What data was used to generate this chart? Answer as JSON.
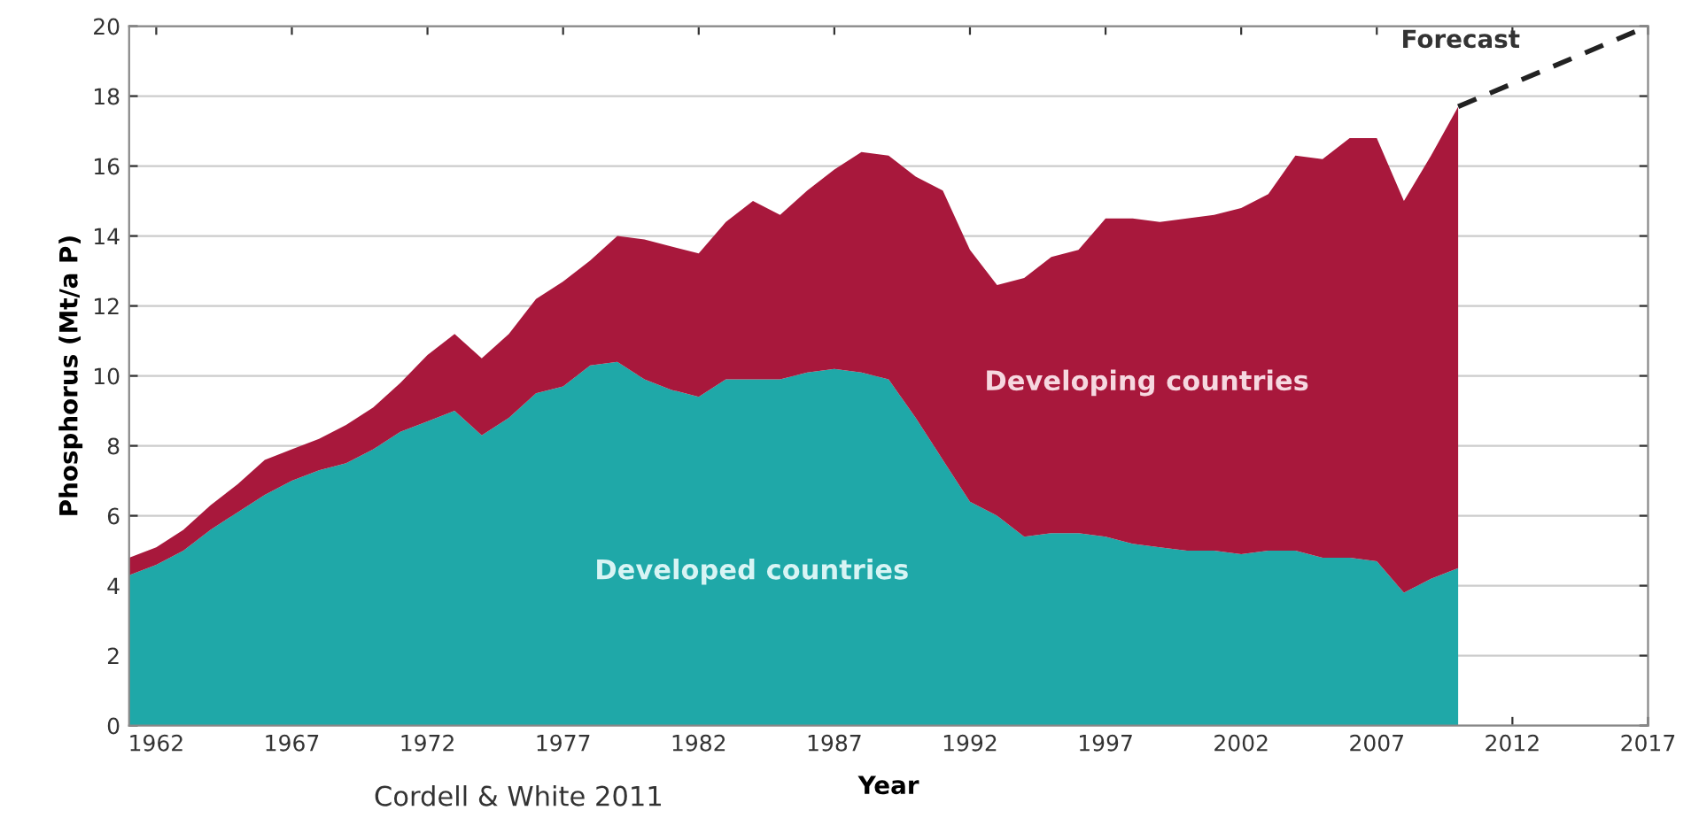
{
  "chart_data": {
    "type": "area",
    "stacked": true,
    "xlabel": "Year",
    "ylabel": "Phosphorus (Mt/a P)",
    "x": [
      1961,
      1962,
      1963,
      1964,
      1965,
      1966,
      1967,
      1968,
      1969,
      1970,
      1971,
      1972,
      1973,
      1974,
      1975,
      1976,
      1977,
      1978,
      1979,
      1980,
      1981,
      1982,
      1983,
      1984,
      1985,
      1986,
      1987,
      1988,
      1989,
      1990,
      1991,
      1992,
      1993,
      1994,
      1995,
      1996,
      1997,
      1998,
      1999,
      2000,
      2001,
      2002,
      2003,
      2004,
      2005,
      2006,
      2007,
      2008,
      2009,
      2010
    ],
    "series": [
      {
        "name": "Developed countries",
        "color": "#1fa8a8",
        "values": [
          4.3,
          4.6,
          5.0,
          5.6,
          6.1,
          6.6,
          7.0,
          7.3,
          7.5,
          7.9,
          8.4,
          8.7,
          9.0,
          8.3,
          8.8,
          9.5,
          9.7,
          10.3,
          10.4,
          9.9,
          9.6,
          9.4,
          9.9,
          9.9,
          9.9,
          10.1,
          10.2,
          10.1,
          9.9,
          8.8,
          7.6,
          6.4,
          6.0,
          5.4,
          5.5,
          5.5,
          5.4,
          5.2,
          5.1,
          5.0,
          5.0,
          4.9,
          5.0,
          5.0,
          4.8,
          4.8,
          4.7,
          3.8,
          4.2,
          4.5
        ]
      },
      {
        "name": "Developing countries",
        "color": "#a8183c",
        "values": [
          0.5,
          0.5,
          0.6,
          0.7,
          0.8,
          1.0,
          0.9,
          0.9,
          1.1,
          1.2,
          1.4,
          1.9,
          2.2,
          2.2,
          2.4,
          2.7,
          3.0,
          3.0,
          3.6,
          4.0,
          4.1,
          4.1,
          4.5,
          5.1,
          4.7,
          5.2,
          5.7,
          6.3,
          6.4,
          6.9,
          7.7,
          7.2,
          6.6,
          7.4,
          7.9,
          8.1,
          9.1,
          9.3,
          9.3,
          9.5,
          9.6,
          9.9,
          10.2,
          11.3,
          11.4,
          12.0,
          12.1,
          11.2,
          12.1,
          13.2
        ]
      },
      {
        "name": "Forecast",
        "type": "line",
        "line_style": "dashed",
        "color": "#222222",
        "x": [
          2010,
          2017
        ],
        "values": [
          17.7,
          20.0
        ]
      }
    ],
    "xlim": [
      1961,
      2017
    ],
    "xticks": [
      1962,
      1967,
      1972,
      1977,
      1982,
      1987,
      1992,
      1997,
      2002,
      2007,
      2012,
      2017
    ],
    "ylim": [
      0,
      20
    ],
    "yticks": [
      0,
      2,
      4,
      6,
      8,
      10,
      12,
      14,
      16,
      18,
      20
    ],
    "grid": "y",
    "legend": false,
    "annotations": [
      "Cordell & White 2011"
    ]
  }
}
